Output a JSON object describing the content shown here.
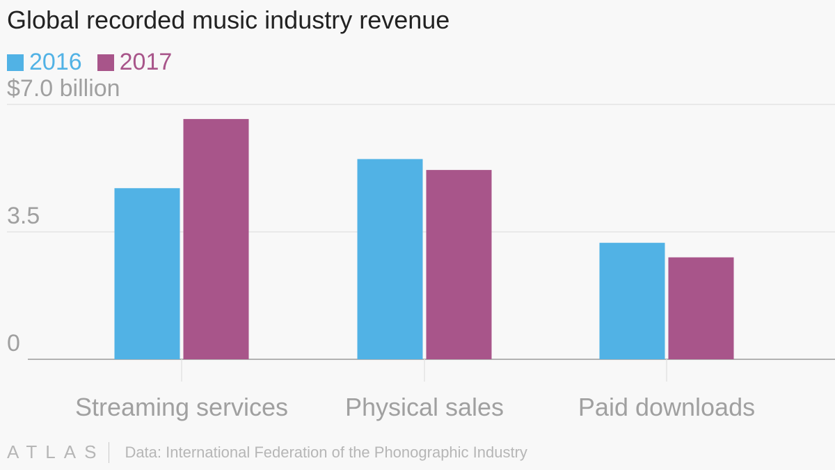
{
  "chart_data": {
    "type": "bar",
    "title": "Global recorded music industry revenue",
    "categories": [
      "Streaming services",
      "Physical sales",
      "Paid downloads"
    ],
    "series": [
      {
        "name": "2016",
        "color": "#51b2e5",
        "values": [
          4.7,
          5.5,
          3.2
        ]
      },
      {
        "name": "2017",
        "color": "#a8558a",
        "values": [
          6.6,
          5.2,
          2.8
        ]
      }
    ],
    "yticks": [
      {
        "value": 0,
        "label": "0"
      },
      {
        "value": 3.5,
        "label": "3.5"
      },
      {
        "value": 7.0,
        "label": "$7.0 billion"
      }
    ],
    "ylim": [
      0,
      7.0
    ],
    "xlabel": "",
    "ylabel": ""
  },
  "footer": {
    "logo": "ATLAS",
    "source": "Data: International Federation of the Phonographic Industry"
  },
  "colors": {
    "background": "#f8f8f8",
    "grid": "#e4e4e4",
    "axis": "#9a9a9a",
    "tick_text": "#a0a0a0"
  }
}
